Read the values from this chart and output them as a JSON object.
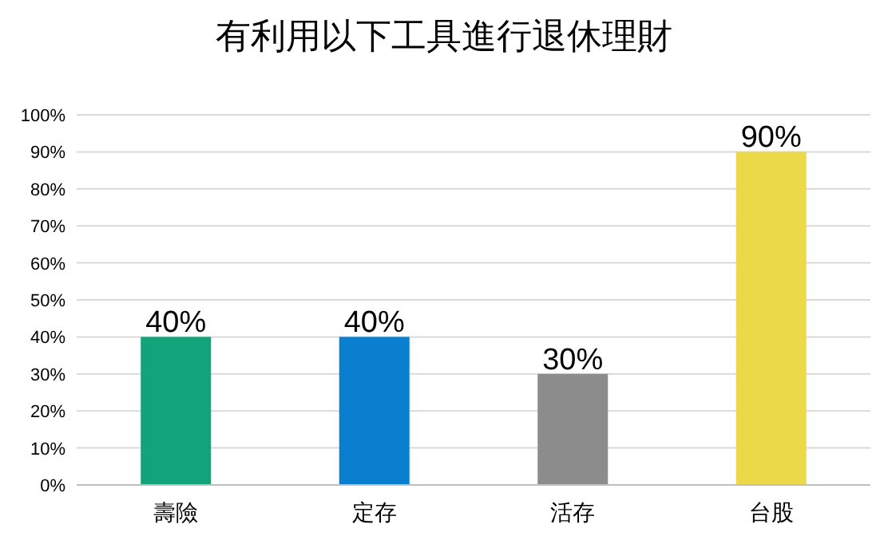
{
  "chart_data": {
    "type": "bar",
    "title": "有利用以下工具進行退休理財",
    "categories": [
      "壽險",
      "定存",
      "活存",
      "台股"
    ],
    "values": [
      40,
      40,
      30,
      90
    ],
    "colors": [
      "#12a37a",
      "#0a7fd0",
      "#8c8c8c",
      "#ecd94a"
    ],
    "value_labels": [
      "40%",
      "40%",
      "30%",
      "90%"
    ],
    "ylim": [
      0,
      100
    ],
    "yticks": [
      {
        "value": 0,
        "label": "0%"
      },
      {
        "value": 10,
        "label": "10%"
      },
      {
        "value": 20,
        "label": "20%"
      },
      {
        "value": 30,
        "label": "30%"
      },
      {
        "value": 40,
        "label": "40%"
      },
      {
        "value": 50,
        "label": "50%"
      },
      {
        "value": 60,
        "label": "60%"
      },
      {
        "value": 70,
        "label": "70%"
      },
      {
        "value": 80,
        "label": "80%"
      },
      {
        "value": 90,
        "label": "90%"
      },
      {
        "value": 100,
        "label": "100%"
      }
    ],
    "grid": "y"
  }
}
